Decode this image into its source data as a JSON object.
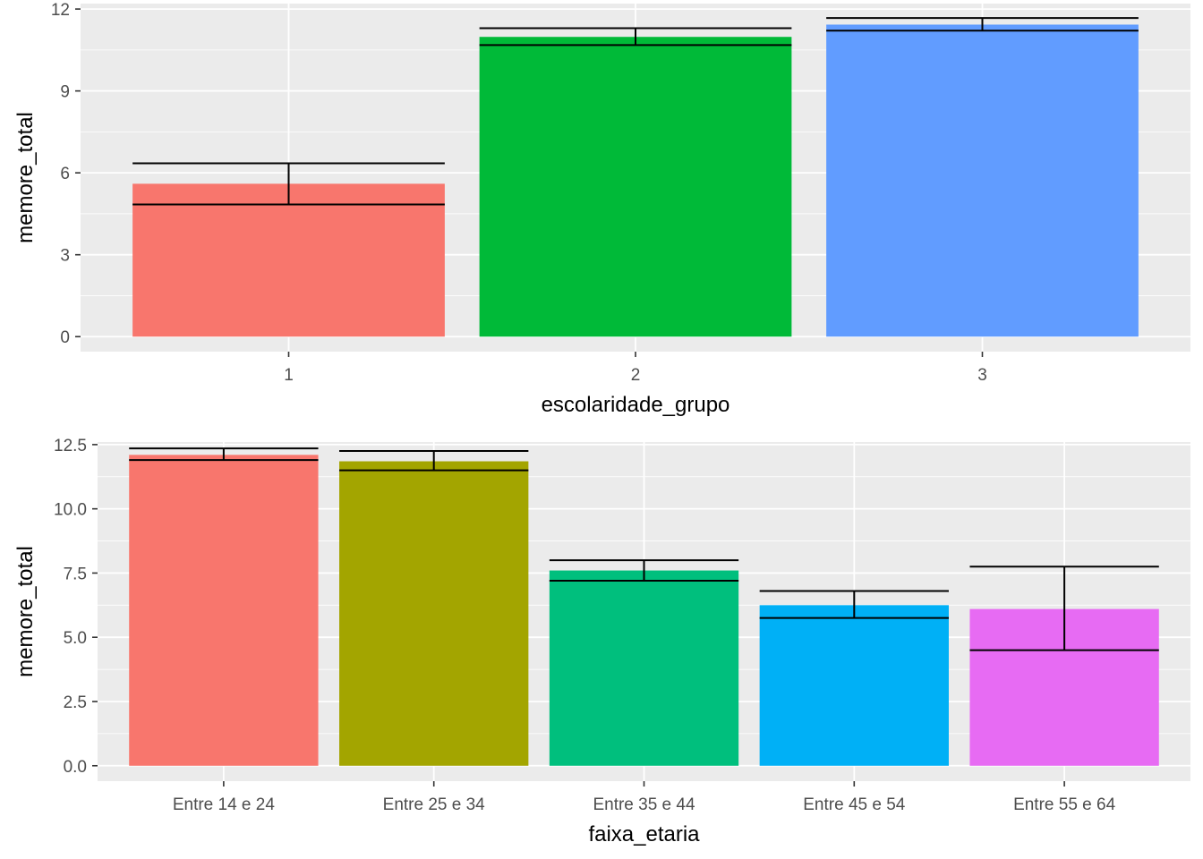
{
  "chart_data": [
    {
      "type": "bar",
      "xlabel": "escolaridade_grupo",
      "ylabel": "memore_total",
      "categories": [
        "1",
        "2",
        "3"
      ],
      "values": [
        5.6,
        10.98,
        11.43
      ],
      "error_low": [
        4.84,
        10.68,
        11.21
      ],
      "error_high": [
        6.35,
        11.3,
        11.67
      ],
      "colors": [
        "#F8766D",
        "#00BA38",
        "#619CFF"
      ],
      "ylim": [
        -0.55,
        12.2
      ],
      "yticks": [
        0,
        3,
        6,
        9,
        12
      ],
      "ytick_labels": [
        "0",
        "3",
        "6",
        "9",
        "12"
      ],
      "grid": true,
      "legend": "none"
    },
    {
      "type": "bar",
      "xlabel": "faixa_etaria",
      "ylabel": "memore_total",
      "categories": [
        "Entre 14 e 24",
        "Entre 25 e 34",
        "Entre 35 e 44",
        "Entre 45 e 54",
        "Entre 55 e 64"
      ],
      "values": [
        12.1,
        11.85,
        7.6,
        6.25,
        6.1
      ],
      "error_low": [
        11.9,
        11.5,
        7.2,
        5.75,
        4.5
      ],
      "error_high": [
        12.35,
        12.25,
        8.0,
        6.8,
        7.75
      ],
      "colors": [
        "#F8766D",
        "#A3A500",
        "#00BF7D",
        "#00B0F6",
        "#E76BF3"
      ],
      "ylim": [
        -0.6,
        12.6
      ],
      "yticks": [
        0,
        2.5,
        5,
        7.5,
        10,
        12.5
      ],
      "ytick_labels": [
        "0.0",
        "2.5",
        "5.0",
        "7.5",
        "10.0",
        "12.5"
      ],
      "grid": true,
      "legend": "none"
    }
  ]
}
